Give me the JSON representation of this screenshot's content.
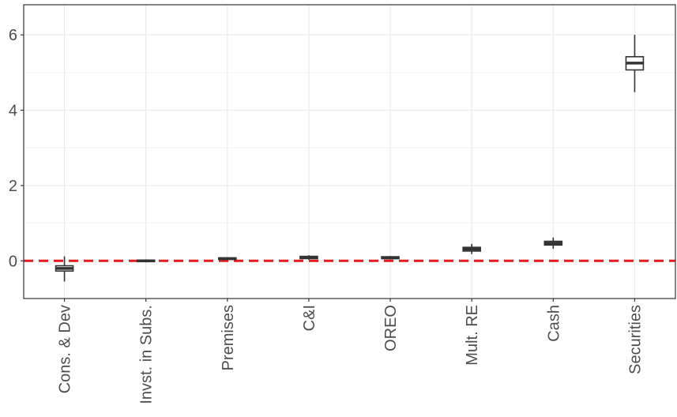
{
  "chart_data": {
    "type": "boxplot",
    "title": "",
    "xlabel": "",
    "ylabel": "",
    "categories": [
      "Cons. & Dev",
      "Invst. in Subs.",
      "Premises",
      "C&I",
      "OREO",
      "Mult. RE",
      "Cash",
      "Securities"
    ],
    "boxes": [
      {
        "category": "Cons. & Dev",
        "min": -0.55,
        "q1": -0.27,
        "median": -0.2,
        "q3": -0.13,
        "max": 0.12
      },
      {
        "category": "Invst. in Subs.",
        "min": -0.04,
        "q1": -0.02,
        "median": 0.0,
        "q3": 0.02,
        "max": 0.04
      },
      {
        "category": "Premises",
        "min": 0.02,
        "q1": 0.04,
        "median": 0.06,
        "q3": 0.08,
        "max": 0.1
      },
      {
        "category": "C&I",
        "min": 0.03,
        "q1": 0.06,
        "median": 0.09,
        "q3": 0.12,
        "max": 0.15
      },
      {
        "category": "OREO",
        "min": 0.04,
        "q1": 0.06,
        "median": 0.08,
        "q3": 0.11,
        "max": 0.13
      },
      {
        "category": "Mult. RE",
        "min": 0.18,
        "q1": 0.26,
        "median": 0.31,
        "q3": 0.36,
        "max": 0.45
      },
      {
        "category": "Cash",
        "min": 0.32,
        "q1": 0.42,
        "median": 0.47,
        "q3": 0.52,
        "max": 0.62
      },
      {
        "category": "Securities",
        "min": 4.48,
        "q1": 5.07,
        "median": 5.25,
        "q3": 5.42,
        "max": 6.0
      }
    ],
    "yticks": [
      0,
      2,
      4,
      6
    ],
    "ylim": [
      -1.0,
      6.8
    ],
    "reference_line": {
      "y": 0,
      "style": "dashed",
      "color": "#e41a1c"
    },
    "grid": true,
    "legend": "none",
    "colors": {
      "box_fill": "#ffffff",
      "box_stroke": "#333333",
      "grid": "#ebebeb",
      "border": "#333333"
    }
  }
}
